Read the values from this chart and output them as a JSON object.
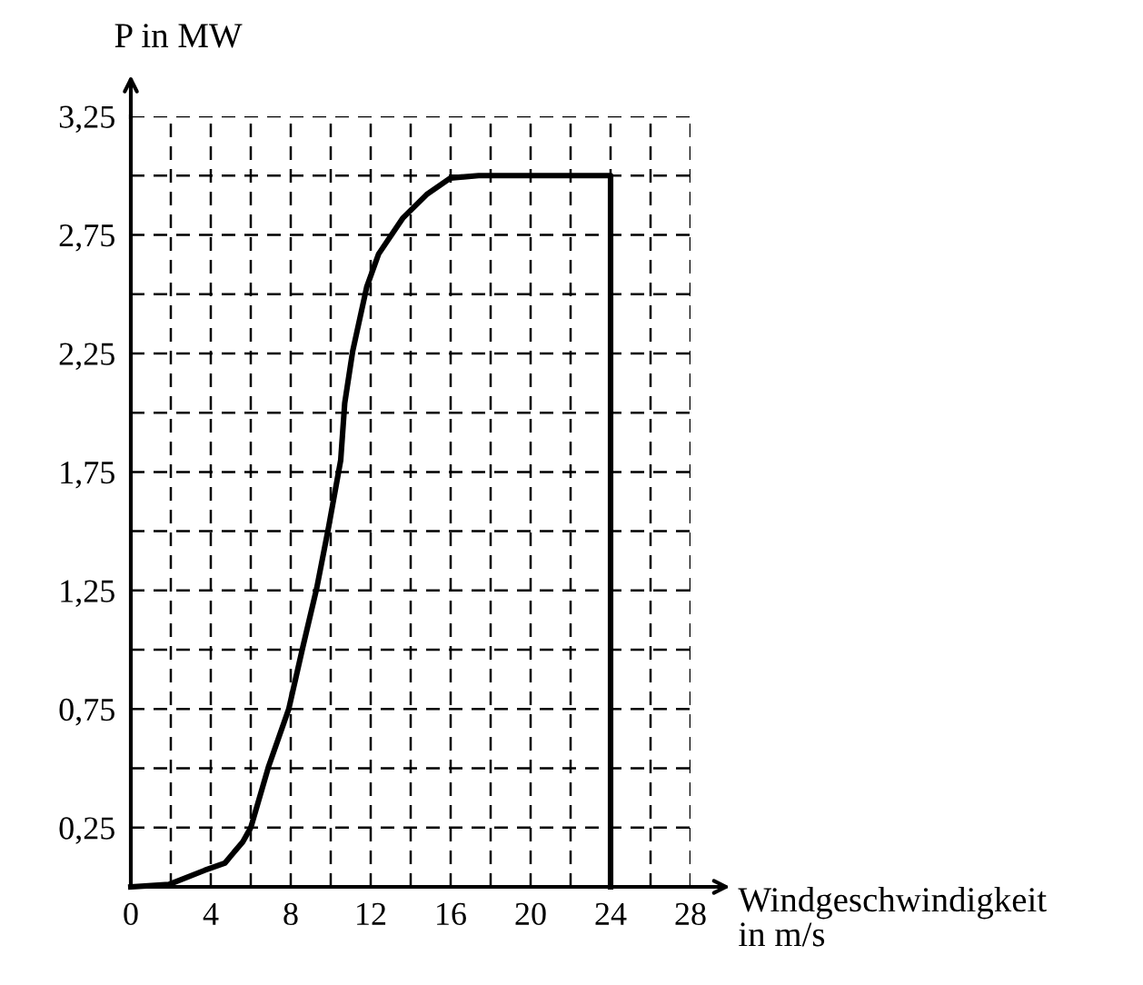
{
  "chart_data": {
    "type": "line",
    "xlabel": "Windgeschwindigkeit\nin m/s",
    "ylabel": "P in MW",
    "series": [
      {
        "color": "#000000",
        "x": [
          0,
          1.9,
          3.7,
          4.7,
          5.6,
          6.0,
          6.9,
          7.9,
          8.6,
          9.3,
          9.9,
          10.5,
          10.7,
          11.1,
          11.8,
          12.4,
          13.6,
          14.8,
          16.0,
          17.4,
          24,
          24
        ],
        "values": [
          0,
          0.01,
          0.07,
          0.1,
          0.19,
          0.25,
          0.51,
          0.75,
          1.01,
          1.26,
          1.52,
          1.8,
          2.04,
          2.26,
          2.53,
          2.67,
          2.82,
          2.92,
          2.99,
          3.0,
          3.0,
          0
        ]
      }
    ],
    "xlim": [
      0,
      28
    ],
    "ylim": [
      0,
      3.25
    ],
    "xticks": [
      0,
      {
        "value": 2,
        "label": null
      },
      4,
      {
        "value": 6,
        "label": null
      },
      8,
      {
        "value": 10,
        "label": null
      },
      12,
      {
        "value": 14,
        "label": null
      },
      16,
      {
        "value": 18,
        "label": null
      },
      20,
      {
        "value": 22,
        "label": null
      },
      24,
      {
        "value": 26,
        "label": null
      },
      28
    ],
    "yticks": [
      {
        "value": 0.25,
        "label": "0,25"
      },
      {
        "value": 0.5,
        "label": null
      },
      {
        "value": 0.75,
        "label": "0,75"
      },
      {
        "value": 1.0,
        "label": null
      },
      {
        "value": 1.25,
        "label": "1,25"
      },
      {
        "value": 1.5,
        "label": null
      },
      {
        "value": 1.75,
        "label": "1,75"
      },
      {
        "value": 2.0,
        "label": null
      },
      {
        "value": 2.25,
        "label": "2,25"
      },
      {
        "value": 2.5,
        "label": null
      },
      {
        "value": 2.75,
        "label": "2,75"
      },
      {
        "value": 3.0,
        "label": null
      },
      {
        "value": 3.25,
        "label": "3,25"
      }
    ],
    "grid": true,
    "legend": false,
    "marker": "none",
    "line_style": "solid"
  }
}
